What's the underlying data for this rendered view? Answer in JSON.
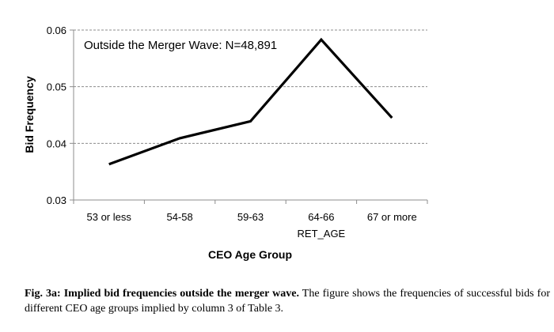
{
  "chart_data": {
    "type": "line",
    "categories": [
      "53 or less",
      "54-58",
      "59-63",
      "64-66",
      "67 or more"
    ],
    "category_sublabels": [
      "",
      "",
      "",
      "RET_AGE",
      ""
    ],
    "series": [
      {
        "values": [
          0.0363,
          0.0409,
          0.0439,
          0.0583,
          0.0445
        ],
        "color": "#000000"
      }
    ],
    "xlabel": "CEO Age Group",
    "ylabel": "Bid Frequency",
    "ylim": [
      0.03,
      0.06
    ],
    "yticks": [
      0.03,
      0.04,
      0.05,
      0.06
    ],
    "ytick_labels": [
      "0.03",
      "0.04",
      "0.05",
      "0.06"
    ],
    "grid": true,
    "annotation": "Outside the Merger Wave: N=48,891"
  },
  "caption": {
    "bold": "Fig. 3a: Implied bid frequencies outside the merger wave.",
    "text": " The figure shows the frequencies of successful bids for different CEO age groups implied by column 3 of Table 3."
  }
}
